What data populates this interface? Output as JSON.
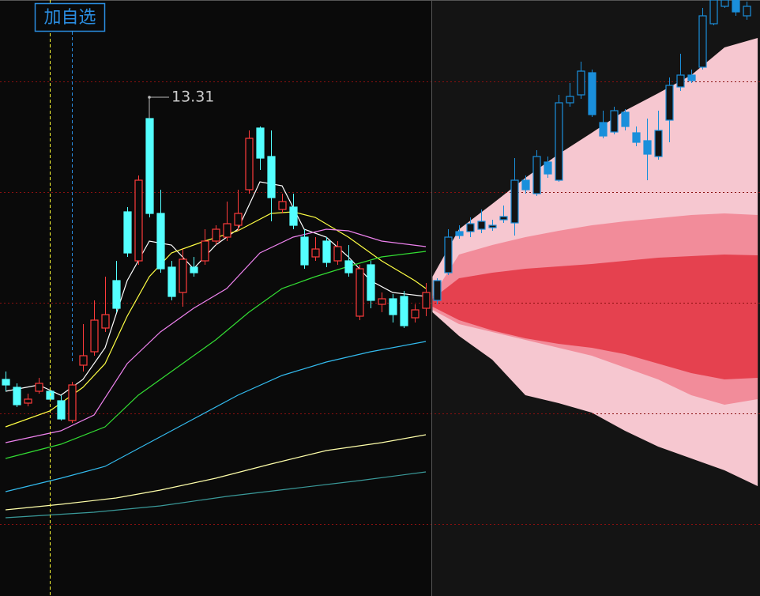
{
  "chart_data": {
    "type": "candlestick",
    "button_label": "加自选",
    "ylim": [
      7.27,
      14.81
    ],
    "xlim": [
      -0.5,
      68.21
    ],
    "gridlines": [
      13.78,
      12.38,
      10.98,
      9.58,
      8.18
    ],
    "markers": [
      {
        "x": 4,
        "color": "#ffff33"
      },
      {
        "x": 6,
        "color": "#2a8de0"
      }
    ],
    "annotations": [
      {
        "text": "13.31",
        "x": 13,
        "value": 13.31
      }
    ],
    "candles": [
      {
        "color_up": "#ff3b3b",
        "color_down": "#54ffff",
        "x": [
          0,
          1,
          2,
          3,
          4,
          5,
          6,
          7,
          8,
          9,
          10,
          11,
          12,
          13,
          14,
          15,
          16,
          17,
          18,
          19,
          20,
          21,
          22,
          23,
          24,
          25,
          26,
          27,
          28,
          29,
          30,
          31,
          32,
          33,
          34,
          35,
          36,
          37,
          38
        ],
        "open": [
          10.01,
          9.91,
          9.71,
          9.86,
          9.86,
          9.74,
          9.49,
          10.19,
          10.36,
          10.66,
          11.26,
          12.13,
          11.51,
          13.31,
          12.11,
          11.43,
          11.11,
          11.43,
          11.51,
          11.76,
          11.81,
          11.96,
          12.41,
          13.19,
          12.83,
          12.16,
          12.19,
          11.81,
          11.56,
          11.76,
          11.51,
          11.51,
          10.81,
          11.46,
          10.96,
          11.03,
          11.06,
          10.79,
          10.91
        ],
        "high": [
          10.11,
          9.96,
          9.83,
          10.03,
          9.91,
          9.81,
          9.98,
          10.71,
          11.01,
          11.31,
          11.51,
          12.19,
          12.59,
          13.31,
          12.41,
          11.51,
          11.66,
          11.56,
          11.91,
          11.96,
          12.26,
          12.41,
          13.16,
          13.21,
          13.16,
          12.36,
          12.36,
          11.91,
          11.81,
          11.81,
          11.76,
          11.71,
          11.46,
          11.51,
          11.11,
          11.09,
          11.13,
          10.96,
          11.23
        ],
        "low": [
          9.86,
          9.66,
          9.67,
          9.83,
          9.73,
          9.49,
          9.46,
          10.11,
          10.31,
          10.61,
          10.86,
          11.56,
          11.46,
          12.06,
          11.36,
          11.01,
          10.93,
          11.31,
          11.46,
          11.71,
          11.76,
          11.89,
          12.36,
          12.66,
          12.01,
          12.11,
          11.91,
          11.41,
          11.51,
          11.43,
          11.46,
          11.31,
          10.76,
          10.91,
          10.86,
          10.73,
          10.66,
          10.73,
          10.81
        ],
        "close": [
          9.94,
          9.69,
          9.76,
          9.96,
          9.76,
          9.51,
          9.94,
          10.31,
          10.76,
          10.83,
          10.91,
          11.61,
          12.53,
          12.11,
          11.41,
          11.06,
          11.53,
          11.36,
          11.76,
          11.91,
          11.98,
          12.11,
          13.06,
          12.81,
          12.31,
          12.26,
          11.96,
          11.46,
          11.66,
          11.49,
          11.69,
          11.36,
          11.41,
          11.01,
          11.03,
          10.83,
          10.69,
          10.89,
          11.11
        ]
      },
      {
        "color_up": "#1a8fdb",
        "color_down": "#1a8fdb",
        "x": [
          39,
          40,
          41,
          42,
          43,
          44,
          45,
          46,
          47,
          48,
          49,
          50,
          51,
          52,
          53,
          54,
          55,
          56,
          57,
          58,
          59,
          60,
          61,
          62,
          63,
          64,
          65,
          66,
          67
        ],
        "open": [
          11.01,
          11.36,
          11.88,
          11.88,
          11.91,
          11.93,
          12.03,
          11.99,
          12.53,
          12.36,
          12.76,
          12.53,
          13.51,
          13.61,
          13.89,
          13.26,
          13.14,
          13.39,
          13.13,
          13.03,
          12.83,
          13.29,
          13.71,
          13.86,
          13.96,
          14.51,
          14.73,
          14.81,
          14.61
        ],
        "high": [
          11.29,
          11.91,
          11.96,
          12.06,
          12.16,
          12.03,
          12.21,
          12.81,
          12.59,
          12.91,
          12.83,
          13.61,
          13.76,
          14.03,
          13.93,
          13.41,
          13.46,
          13.43,
          13.21,
          13.31,
          13.41,
          13.83,
          14.13,
          13.93,
          14.71,
          14.81,
          14.81,
          14.81,
          14.79
        ],
        "low": [
          10.96,
          11.33,
          11.79,
          11.81,
          11.86,
          11.89,
          11.99,
          11.83,
          12.36,
          12.33,
          12.56,
          12.51,
          13.46,
          13.56,
          13.33,
          13.06,
          13.11,
          13.16,
          12.96,
          12.53,
          12.79,
          13.01,
          13.66,
          13.76,
          13.93,
          14.49,
          14.71,
          14.61,
          14.56
        ],
        "close": [
          11.26,
          11.81,
          11.83,
          11.98,
          12.01,
          11.96,
          12.07,
          12.53,
          12.41,
          12.83,
          12.61,
          13.51,
          13.59,
          13.91,
          13.36,
          13.09,
          13.41,
          13.21,
          13.01,
          12.86,
          13.16,
          13.73,
          13.86,
          13.79,
          14.61,
          14.81,
          14.81,
          14.66,
          14.73
        ]
      }
    ],
    "lines": [
      {
        "color": "#ffffff",
        "x": [
          0,
          3,
          5,
          7,
          9,
          11,
          13,
          15,
          17,
          19,
          21,
          23,
          25,
          27,
          29,
          31,
          33,
          35,
          38
        ],
        "values": [
          9.86,
          9.94,
          9.81,
          10.01,
          10.41,
          11.26,
          11.76,
          11.71,
          11.41,
          11.71,
          11.91,
          12.51,
          12.46,
          11.91,
          11.81,
          11.56,
          11.26,
          11.11,
          11.06
        ]
      },
      {
        "color": "#ffff44",
        "x": [
          0,
          4,
          7,
          9,
          11,
          13,
          15,
          18,
          21,
          24,
          26,
          28,
          31,
          34,
          37,
          38
        ],
        "values": [
          9.41,
          9.61,
          9.91,
          10.21,
          10.81,
          11.31,
          11.61,
          11.76,
          11.89,
          12.11,
          12.13,
          12.06,
          11.81,
          11.51,
          11.26,
          11.16
        ]
      },
      {
        "color": "#ee82ee",
        "x": [
          0,
          5,
          8,
          11,
          14,
          17,
          20,
          23,
          26,
          29,
          31,
          34,
          38
        ],
        "values": [
          9.21,
          9.36,
          9.56,
          10.21,
          10.61,
          10.91,
          11.16,
          11.61,
          11.81,
          11.91,
          11.89,
          11.76,
          11.69
        ]
      },
      {
        "color": "#33dd33",
        "x": [
          0,
          5,
          9,
          12,
          15,
          19,
          22,
          25,
          28,
          31,
          34,
          38
        ],
        "values": [
          9.01,
          9.19,
          9.41,
          9.81,
          10.11,
          10.51,
          10.86,
          11.16,
          11.31,
          11.44,
          11.56,
          11.63
        ]
      },
      {
        "color": "#33bbee",
        "x": [
          0,
          5,
          9,
          13,
          17,
          21,
          25,
          29,
          33,
          38
        ],
        "values": [
          8.59,
          8.76,
          8.91,
          9.21,
          9.51,
          9.81,
          10.06,
          10.23,
          10.36,
          10.49
        ]
      },
      {
        "color": "#ffffaa",
        "x": [
          0,
          5,
          10,
          14,
          19,
          24,
          29,
          34,
          38
        ],
        "values": [
          8.36,
          8.43,
          8.51,
          8.61,
          8.76,
          8.94,
          9.11,
          9.21,
          9.31
        ]
      },
      {
        "color": "#3a9a9a",
        "x": [
          0,
          8,
          14,
          20,
          26,
          32,
          38
        ],
        "values": [
          8.26,
          8.33,
          8.41,
          8.53,
          8.63,
          8.73,
          8.84
        ]
      }
    ],
    "bands": [
      {
        "color": "#f6c7d0",
        "x": [
          38.6,
          41,
          44,
          47,
          50,
          53,
          56,
          59,
          62,
          65,
          68
        ],
        "upper": [
          11.31,
          11.91,
          12.23,
          12.56,
          12.86,
          13.13,
          13.41,
          13.63,
          13.86,
          14.21,
          14.33
        ],
        "lower": [
          10.86,
          10.56,
          10.26,
          9.81,
          9.71,
          9.59,
          9.36,
          9.16,
          9.01,
          8.86,
          8.66
        ]
      },
      {
        "color": "#f28c9a",
        "x": [
          38.6,
          41,
          44,
          47,
          50,
          53,
          56,
          59,
          62,
          65,
          68
        ],
        "upper": [
          11.06,
          11.59,
          11.71,
          11.81,
          11.89,
          11.96,
          12.01,
          12.05,
          12.09,
          12.11,
          12.09
        ],
        "lower": [
          10.89,
          10.71,
          10.61,
          10.51,
          10.41,
          10.31,
          10.16,
          10.01,
          9.81,
          9.69,
          9.76
        ]
      },
      {
        "color": "#e5414f",
        "x": [
          38.6,
          41,
          44,
          47,
          50,
          53,
          56,
          59,
          62,
          65,
          68
        ],
        "upper": [
          11.03,
          11.29,
          11.36,
          11.41,
          11.44,
          11.47,
          11.51,
          11.55,
          11.57,
          11.59,
          11.58
        ],
        "lower": [
          10.93,
          10.76,
          10.63,
          10.53,
          10.46,
          10.41,
          10.33,
          10.21,
          10.09,
          10.01,
          10.03
        ]
      }
    ]
  }
}
